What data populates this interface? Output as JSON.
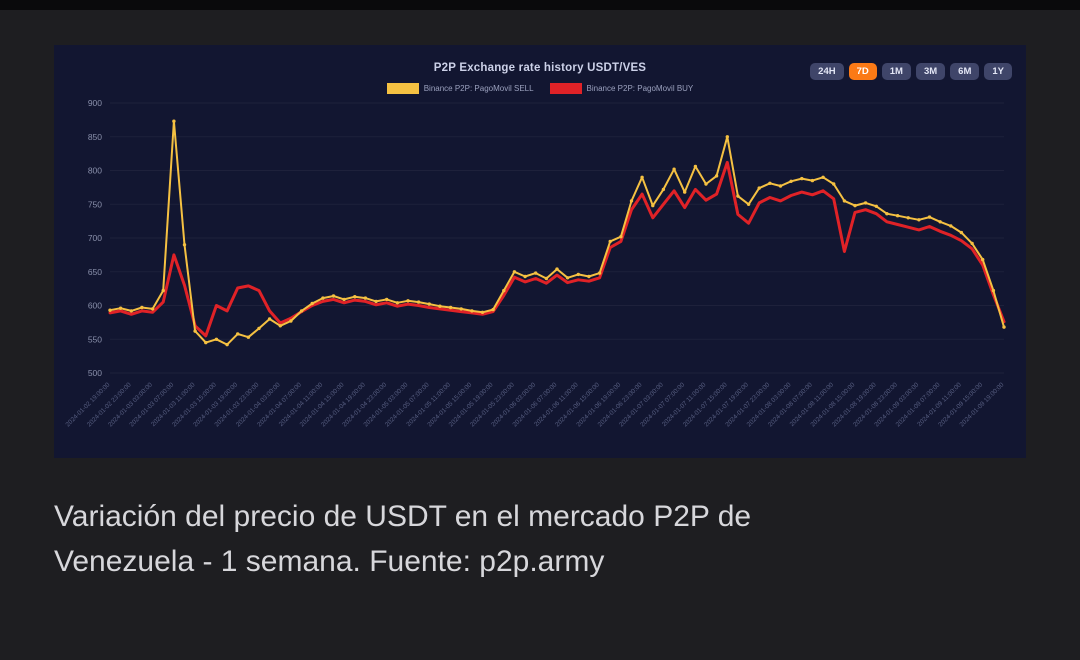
{
  "page": {
    "background": "#1e1e21",
    "caption": "Variación del precio de USDT en el mercado P2P de Venezuela - 1 semana. Fuente: p2p.army"
  },
  "chart": {
    "title": "P2P Exchange rate history USDT/VES",
    "colors": {
      "panel_bg": "#121631",
      "sell": "#f5c142",
      "buy": "#e02227",
      "title": "#ccd1e8",
      "y_label": "#8a90ab",
      "x_label": "#585f82",
      "range_bg": "#3f4569",
      "active_range": "#fb7a16"
    },
    "legend": [
      {
        "label": "Binance P2P: PagoMovil SELL",
        "color": "#f5c142"
      },
      {
        "label": "Binance P2P: PagoMovil BUY",
        "color": "#e02227"
      }
    ],
    "range_buttons": [
      {
        "label": "24H",
        "active": false
      },
      {
        "label": "7D",
        "active": true
      },
      {
        "label": "1M",
        "active": false
      },
      {
        "label": "3M",
        "active": false
      },
      {
        "label": "6M",
        "active": false
      },
      {
        "label": "1Y",
        "active": false
      }
    ]
  },
  "chart_data": {
    "type": "line",
    "title": "P2P Exchange rate history USDT/VES",
    "xlabel": "",
    "ylabel": "",
    "ylim": [
      500,
      900
    ],
    "y_ticks": [
      500,
      550,
      600,
      650,
      700,
      750,
      800,
      850,
      900
    ],
    "grid": false,
    "legend_position": "top",
    "x_tick_labels": [
      "2024-01-02 19:00:00",
      "2024-01-02 23:00:00",
      "2024-01-03 03:00:00",
      "2024-01-03 07:00:00",
      "2024-01-03 11:00:00",
      "2024-01-03 15:00:00",
      "2024-01-03 19:00:00",
      "2024-01-03 23:00:00",
      "2024-01-04 03:00:00",
      "2024-01-04 07:00:00",
      "2024-01-04 11:00:00",
      "2024-01-04 15:00:00",
      "2024-01-04 19:00:00",
      "2024-01-04 23:00:00",
      "2024-01-05 03:00:00",
      "2024-01-05 07:00:00",
      "2024-01-05 11:00:00",
      "2024-01-05 15:00:00",
      "2024-01-05 19:00:00",
      "2024-01-05 23:00:00",
      "2024-01-06 03:00:00",
      "2024-01-06 07:00:00",
      "2024-01-06 11:00:00",
      "2024-01-06 15:00:00",
      "2024-01-06 19:00:00",
      "2024-01-06 23:00:00",
      "2024-01-07 03:00:00",
      "2024-01-07 07:00:00",
      "2024-01-07 11:00:00",
      "2024-01-07 15:00:00",
      "2024-01-07 19:00:00",
      "2024-01-07 23:00:00",
      "2024-01-08 03:00:00",
      "2024-01-08 07:00:00",
      "2024-01-08 11:00:00",
      "2024-01-08 15:00:00",
      "2024-01-08 19:00:00",
      "2024-01-08 23:00:00",
      "2024-01-09 03:00:00",
      "2024-01-09 07:00:00",
      "2024-01-09 11:00:00",
      "2024-01-09 15:00:00",
      "2024-01-09 19:00:00"
    ],
    "series": [
      {
        "id": "sell",
        "name": "Binance P2P: PagoMovil SELL",
        "color": "#f5c142",
        "line_width": 2,
        "markers": true,
        "values": [
          593,
          596,
          592,
          597,
          595,
          622,
          873,
          690,
          562,
          545,
          550,
          542,
          558,
          553,
          566,
          580,
          570,
          577,
          592,
          603,
          611,
          614,
          609,
          613,
          611,
          606,
          609,
          604,
          607,
          605,
          602,
          599,
          597,
          595,
          592,
          590,
          594,
          622,
          650,
          643,
          648,
          640,
          654,
          641,
          646,
          643,
          648,
          695,
          702,
          755,
          790,
          748,
          772,
          802,
          768,
          806,
          780,
          792,
          850,
          762,
          750,
          774,
          781,
          777,
          784,
          788,
          785,
          790,
          780,
          755,
          748,
          752,
          747,
          736,
          733,
          730,
          727,
          731,
          724,
          718,
          708,
          692,
          668,
          622,
          568
        ]
      },
      {
        "id": "buy",
        "name": "Binance P2P: PagoMovil BUY",
        "color": "#e02227",
        "line_width": 3,
        "markers": false,
        "values": [
          589,
          592,
          587,
          592,
          590,
          605,
          675,
          630,
          570,
          555,
          600,
          592,
          626,
          629,
          622,
          592,
          574,
          581,
          591,
          600,
          606,
          609,
          604,
          608,
          606,
          601,
          604,
          599,
          602,
          600,
          597,
          595,
          593,
          591,
          589,
          587,
          591,
          615,
          642,
          635,
          640,
          633,
          645,
          634,
          638,
          636,
          641,
          686,
          695,
          742,
          765,
          730,
          750,
          770,
          745,
          772,
          756,
          765,
          812,
          735,
          722,
          752,
          760,
          755,
          763,
          768,
          764,
          770,
          758,
          680,
          738,
          742,
          736,
          724,
          720,
          716,
          712,
          717,
          710,
          704,
          696,
          684,
          660,
          616,
          576
        ]
      }
    ]
  }
}
